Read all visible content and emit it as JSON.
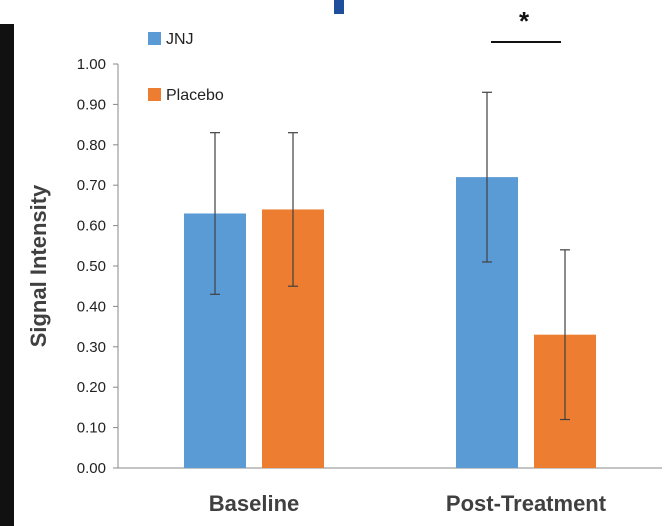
{
  "chart_data": {
    "type": "bar",
    "title": "",
    "xlabel": "",
    "ylabel": "Signal Intensity",
    "categories": [
      "Baseline",
      "Post-Treatment"
    ],
    "series": [
      {
        "name": "JNJ",
        "color": "#5b9bd5",
        "values": [
          0.63,
          0.72
        ],
        "error_low": [
          0.43,
          0.51
        ],
        "error_high": [
          0.83,
          0.93
        ]
      },
      {
        "name": "Placebo",
        "color": "#ed7d31",
        "values": [
          0.64,
          0.33
        ],
        "error_low": [
          0.45,
          0.12
        ],
        "error_high": [
          0.83,
          0.54
        ]
      }
    ],
    "ylim": [
      0,
      1.0
    ],
    "y_ticks": [
      "0.00",
      "0.10",
      "0.20",
      "0.30",
      "0.40",
      "0.50",
      "0.60",
      "0.70",
      "0.80",
      "0.90",
      "1.00"
    ],
    "legend_position": "top-left",
    "grid": false,
    "annotation": {
      "text": "*",
      "category": "Post-Treatment"
    }
  }
}
